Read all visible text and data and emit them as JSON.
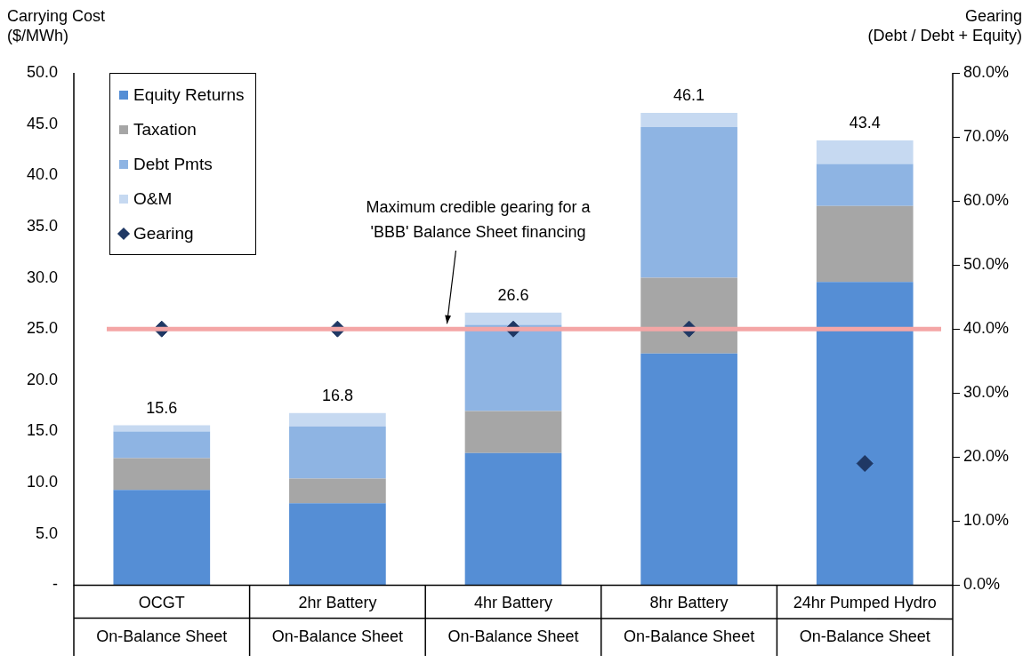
{
  "chart_data": {
    "type": "bar",
    "stacked": true,
    "xlabel": null,
    "ylabel": "Carrying Cost\n($/MWh)",
    "y2label": "Gearing\n(Debt / Debt + Equity)",
    "categories": [
      "OCGT\nOn-Balance Sheet",
      "2hr Battery\nOn-Balance Sheet",
      "4hr Battery\nOn-Balance Sheet",
      "8hr Battery\nOn-Balance Sheet",
      "24hr Pumped Hydro\nOn-Balance Sheet"
    ],
    "series": [
      {
        "name": "Equity Returns",
        "color": "#558ed5",
        "values": [
          9.3,
          8.0,
          12.9,
          22.6,
          29.6
        ]
      },
      {
        "name": "Taxation",
        "color": "#a6a6a6",
        "values": [
          3.1,
          2.4,
          4.1,
          7.4,
          7.4
        ]
      },
      {
        "name": "Debt Pmts",
        "color": "#8eb4e3",
        "values": [
          2.6,
          5.1,
          8.4,
          14.7,
          4.1
        ]
      },
      {
        "name": "O&M",
        "color": "#c6d9f1",
        "values": [
          0.6,
          1.3,
          1.2,
          1.4,
          2.3
        ]
      },
      {
        "name": "Gearing",
        "type": "scatter",
        "axis": "y2",
        "marker": "diamond",
        "color": "#1f3864",
        "values": [
          40,
          40,
          40,
          40,
          19
        ]
      }
    ],
    "totals": [
      "15.6",
      "16.8",
      "26.6",
      "46.1",
      "43.4"
    ],
    "ylim": [
      0,
      50
    ],
    "yticks": [
      {
        "value": 0,
        "label": "-"
      },
      {
        "value": 5,
        "label": "5.0"
      },
      {
        "value": 10,
        "label": "10.0"
      },
      {
        "value": 15,
        "label": "15.0"
      },
      {
        "value": 20,
        "label": "20.0"
      },
      {
        "value": 25,
        "label": "25.0"
      },
      {
        "value": 30,
        "label": "30.0"
      },
      {
        "value": 35,
        "label": "35.0"
      },
      {
        "value": 40,
        "label": "40.0"
      },
      {
        "value": 45,
        "label": "45.0"
      },
      {
        "value": 50,
        "label": "50.0"
      }
    ],
    "y2lim": [
      0,
      80
    ],
    "y2ticks": [
      {
        "value": 0,
        "label": "0.0%"
      },
      {
        "value": 10,
        "label": "10.0%"
      },
      {
        "value": 20,
        "label": "20.0%"
      },
      {
        "value": 30,
        "label": "30.0%"
      },
      {
        "value": 40,
        "label": "40.0%"
      },
      {
        "value": 50,
        "label": "50.0%"
      },
      {
        "value": 60,
        "label": "60.0%"
      },
      {
        "value": 70,
        "label": "70.0%"
      },
      {
        "value": 80,
        "label": "80.0%"
      }
    ],
    "ref_lines": [
      {
        "axis": "y2",
        "value": 40,
        "label": "Maximum credible gearing for a\n'BBB' Balance Sheet financing",
        "color": "#f4a6a6"
      }
    ],
    "grid": false,
    "legend": "top left"
  }
}
